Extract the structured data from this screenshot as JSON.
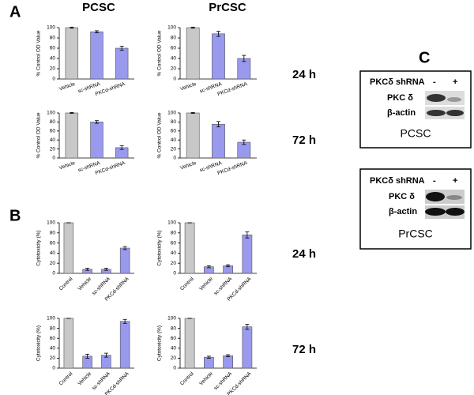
{
  "panel_labels": [
    "A",
    "B",
    "C"
  ],
  "column_labels": [
    "PCSC",
    "PrCSC"
  ],
  "row_labels_a": [
    "24 h",
    "72 h"
  ],
  "row_labels_b": [
    "24 h",
    "72 h"
  ],
  "blots": [
    {
      "header": "PKCδ shRNA",
      "minus": "-",
      "plus": "+",
      "rows": [
        "PKC δ",
        "β-actin"
      ],
      "caption": "PCSC"
    },
    {
      "header": "PKCδ shRNA",
      "minus": "-",
      "plus": "+",
      "rows": [
        "PKC δ",
        "β-actin"
      ],
      "caption": "PrCSC"
    }
  ],
  "chart_data": [
    {
      "type": "bar",
      "ylabel": "% Control OD Value",
      "categories": [
        "Vehicle",
        "sc-shRNA",
        "PKCd-shRNA"
      ],
      "values": [
        100,
        92,
        60
      ],
      "errors": [
        1,
        2,
        4
      ],
      "colors": [
        "#c8c8c8",
        "#9999ee",
        "#9999ee"
      ],
      "ylim": [
        0,
        100
      ],
      "yticks": [
        0,
        20,
        40,
        60,
        80,
        100
      ]
    },
    {
      "type": "bar",
      "ylabel": "% Control OD Value",
      "categories": [
        "Vehicle",
        "sc-shRNA",
        "PKCd-shRNA"
      ],
      "values": [
        100,
        88,
        40
      ],
      "errors": [
        1,
        5,
        6
      ],
      "colors": [
        "#c8c8c8",
        "#9999ee",
        "#9999ee"
      ],
      "ylim": [
        0,
        100
      ],
      "yticks": [
        0,
        20,
        40,
        60,
        80,
        100
      ]
    },
    {
      "type": "bar",
      "ylabel": "% Control OD Value",
      "categories": [
        "Vehicle",
        "sc-shRNA",
        "PKCd-shRNA"
      ],
      "values": [
        100,
        80,
        23
      ],
      "errors": [
        1,
        3,
        4
      ],
      "colors": [
        "#c8c8c8",
        "#9999ee",
        "#9999ee"
      ],
      "ylim": [
        0,
        100
      ],
      "yticks": [
        0,
        20,
        40,
        60,
        80,
        100
      ]
    },
    {
      "type": "bar",
      "ylabel": "% Control OD Value",
      "categories": [
        "Vehicle",
        "sc-shRNA",
        "PKCd-shRNA"
      ],
      "values": [
        100,
        75,
        35
      ],
      "errors": [
        1,
        6,
        5
      ],
      "colors": [
        "#c8c8c8",
        "#9999ee",
        "#9999ee"
      ],
      "ylim": [
        0,
        100
      ],
      "yticks": [
        0,
        20,
        40,
        60,
        80,
        100
      ]
    },
    {
      "type": "bar",
      "ylabel": "Cytotoxicity (%)",
      "categories": [
        "Control",
        "Vehicle",
        "sc-shRNA",
        "PKCd-shRNA"
      ],
      "values": [
        100,
        8,
        8,
        50
      ],
      "errors": [
        0,
        2,
        2,
        3
      ],
      "colors": [
        "#c8c8c8",
        "#9999ee",
        "#9999ee",
        "#9999ee"
      ],
      "ylim": [
        0,
        100
      ],
      "yticks": [
        0,
        20,
        40,
        60,
        80,
        100
      ]
    },
    {
      "type": "bar",
      "ylabel": "Cytotoxicity (%)",
      "categories": [
        "Control",
        "Vehicle",
        "sc-shRNA",
        "PKCd-shRNA"
      ],
      "values": [
        100,
        13,
        15,
        76
      ],
      "errors": [
        0,
        2,
        2,
        6
      ],
      "colors": [
        "#c8c8c8",
        "#9999ee",
        "#9999ee",
        "#9999ee"
      ],
      "ylim": [
        0,
        100
      ],
      "yticks": [
        0,
        20,
        40,
        60,
        80,
        100
      ]
    },
    {
      "type": "bar",
      "ylabel": "Cytotoxicity (%)",
      "categories": [
        "Control",
        "Vehicle",
        "sc-shRNA",
        "PKCd-shRNA"
      ],
      "values": [
        100,
        24,
        26,
        94
      ],
      "errors": [
        0,
        4,
        4,
        4
      ],
      "colors": [
        "#c8c8c8",
        "#9999ee",
        "#9999ee",
        "#9999ee"
      ],
      "ylim": [
        0,
        100
      ],
      "yticks": [
        0,
        20,
        40,
        60,
        80,
        100
      ]
    },
    {
      "type": "bar",
      "ylabel": "Cytotoxicity (%)",
      "categories": [
        "Control",
        "Vehicle",
        "sc-shRNA",
        "PKCd-shRNA"
      ],
      "values": [
        100,
        22,
        25,
        83
      ],
      "errors": [
        0,
        2,
        2,
        5
      ],
      "colors": [
        "#c8c8c8",
        "#9999ee",
        "#9999ee",
        "#9999ee"
      ],
      "ylim": [
        0,
        100
      ],
      "yticks": [
        0,
        20,
        40,
        60,
        80,
        100
      ]
    }
  ]
}
